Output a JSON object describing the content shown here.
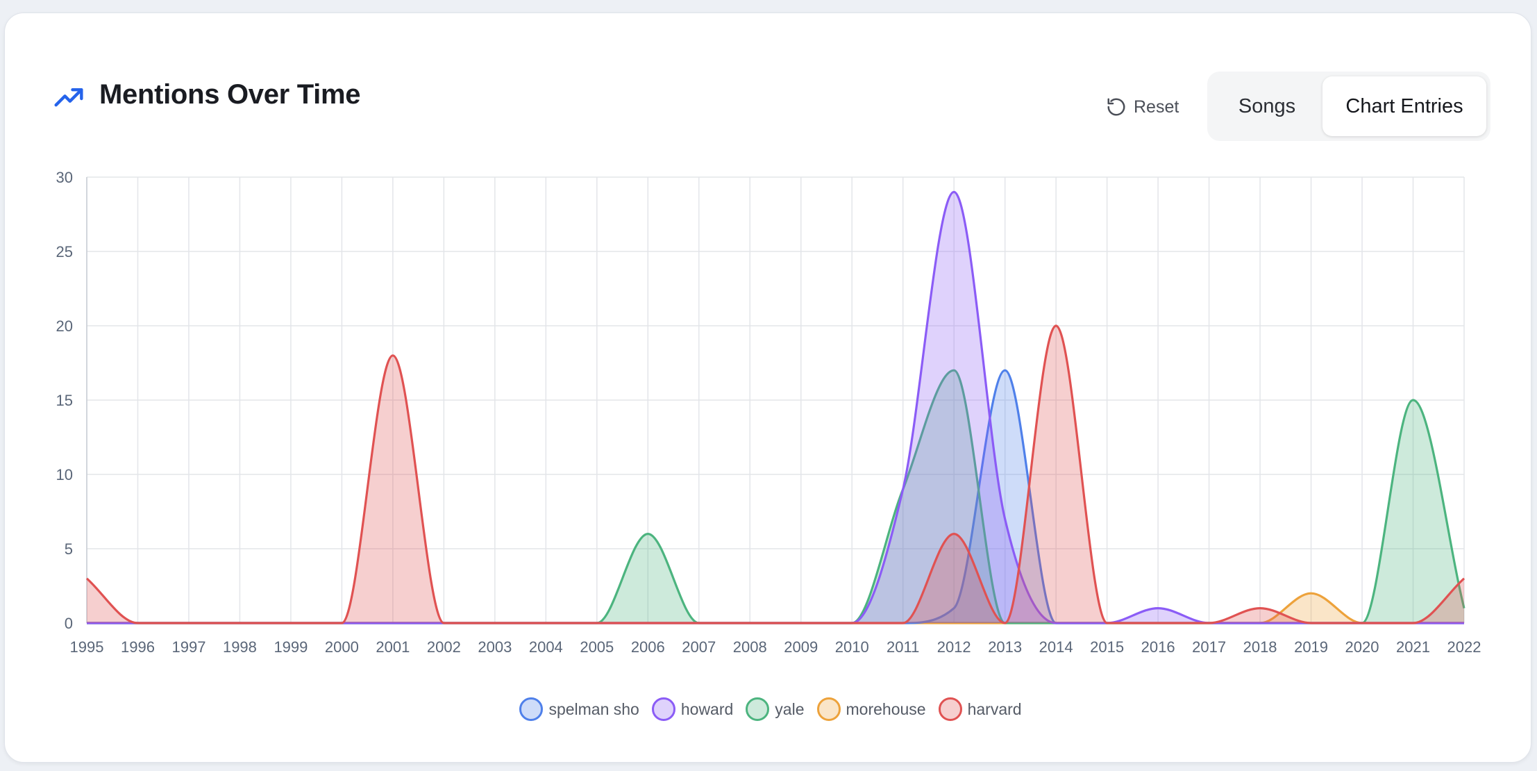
{
  "header": {
    "title": "Mentions Over Time",
    "title_icon": "trending-up-icon",
    "reset_label": "Reset",
    "reset_icon": "rotate-ccw-icon",
    "toggles": [
      {
        "label": "Songs",
        "active": false
      },
      {
        "label": "Chart Entries",
        "active": true
      }
    ]
  },
  "colors": {
    "accent": "#2563eb",
    "spelman sho": "#4f80ea",
    "howard": "#8b5cf6",
    "yale": "#4cb47f",
    "morehouse": "#eda23b",
    "harvard": "#e05252"
  },
  "chart_data": {
    "type": "area",
    "x": [
      1995,
      1996,
      1997,
      1998,
      1999,
      2000,
      2001,
      2002,
      2003,
      2004,
      2005,
      2006,
      2007,
      2008,
      2009,
      2010,
      2011,
      2012,
      2013,
      2014,
      2015,
      2016,
      2017,
      2018,
      2019,
      2020,
      2021,
      2022
    ],
    "ylim": [
      0,
      30
    ],
    "yticks": [
      0,
      5,
      10,
      15,
      20,
      25,
      30
    ],
    "grid": true,
    "legend_position": "bottom",
    "series": [
      {
        "name": "spelman sho",
        "values": [
          0,
          0,
          0,
          0,
          0,
          0,
          0,
          0,
          0,
          0,
          0,
          0,
          0,
          0,
          0,
          0,
          0,
          1,
          17,
          0,
          0,
          0,
          0,
          0,
          0,
          0,
          0,
          0
        ]
      },
      {
        "name": "howard",
        "values": [
          0,
          0,
          0,
          0,
          0,
          0,
          0,
          0,
          0,
          0,
          0,
          0,
          0,
          0,
          0,
          0,
          9,
          29,
          7,
          0,
          0,
          1,
          0,
          0,
          0,
          0,
          0,
          0
        ]
      },
      {
        "name": "yale",
        "values": [
          0,
          0,
          0,
          0,
          0,
          0,
          0,
          0,
          0,
          0,
          0,
          6,
          0,
          0,
          0,
          0,
          9,
          17,
          0,
          0,
          0,
          0,
          0,
          0,
          0,
          0,
          15,
          1
        ]
      },
      {
        "name": "morehouse",
        "values": [
          0,
          0,
          0,
          0,
          0,
          0,
          0,
          0,
          0,
          0,
          0,
          0,
          0,
          0,
          0,
          0,
          0,
          0,
          0,
          0,
          0,
          0,
          0,
          0,
          2,
          0,
          0,
          0
        ]
      },
      {
        "name": "harvard",
        "values": [
          3,
          0,
          0,
          0,
          0,
          0,
          18,
          0,
          0,
          0,
          0,
          0,
          0,
          0,
          0,
          0,
          0,
          6,
          0,
          20,
          0,
          0,
          0,
          1,
          0,
          0,
          0,
          3
        ]
      }
    ]
  }
}
